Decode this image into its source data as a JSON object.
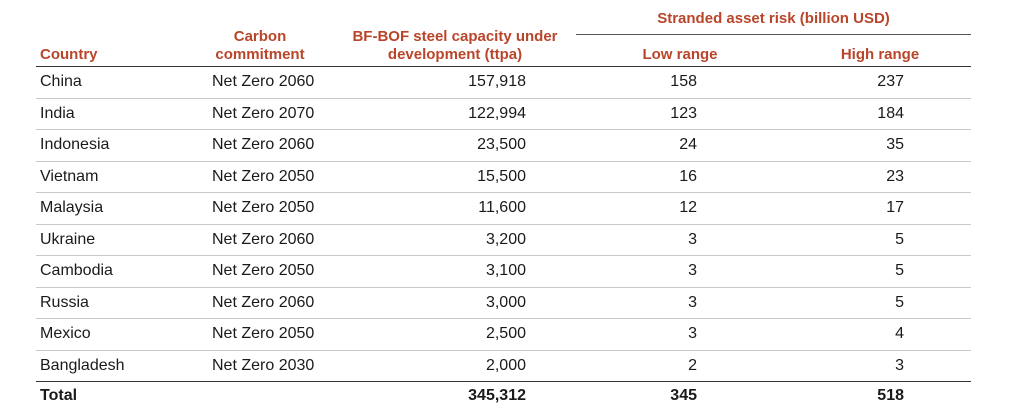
{
  "headers": {
    "country": "Country",
    "carbon_commitment": [
      "Carbon",
      "commitment"
    ],
    "capacity": [
      "BF-BOF steel capacity under",
      "development (ttpa)"
    ],
    "stranded_group": "Stranded asset risk (billion USD)",
    "low": "Low range",
    "high": "High range"
  },
  "rows": [
    {
      "country": "China",
      "commitment": "Net Zero 2060",
      "capacity": "157,918",
      "low": "158",
      "high": "237"
    },
    {
      "country": "India",
      "commitment": "Net Zero 2070",
      "capacity": "122,994",
      "low": "123",
      "high": "184"
    },
    {
      "country": "Indonesia",
      "commitment": "Net Zero 2060",
      "capacity": "23,500",
      "low": "24",
      "high": "35"
    },
    {
      "country": "Vietnam",
      "commitment": "Net Zero 2050",
      "capacity": "15,500",
      "low": "16",
      "high": "23"
    },
    {
      "country": "Malaysia",
      "commitment": "Net Zero 2050",
      "capacity": "11,600",
      "low": "12",
      "high": "17"
    },
    {
      "country": "Ukraine",
      "commitment": "Net Zero 2060",
      "capacity": "3,200",
      "low": "3",
      "high": "5"
    },
    {
      "country": "Cambodia",
      "commitment": "Net Zero 2050",
      "capacity": "3,100",
      "low": "3",
      "high": "5"
    },
    {
      "country": "Russia",
      "commitment": "Net Zero 2060",
      "capacity": "3,000",
      "low": "3",
      "high": "5"
    },
    {
      "country": "Mexico",
      "commitment": "Net Zero 2050",
      "capacity": "2,500",
      "low": "3",
      "high": "4"
    },
    {
      "country": "Bangladesh",
      "commitment": "Net Zero 2030",
      "capacity": "2,000",
      "low": "2",
      "high": "3"
    }
  ],
  "total": {
    "label": "Total",
    "capacity": "345,312",
    "low": "345",
    "high": "518"
  },
  "colors": {
    "header": "#b9452a",
    "text": "#1a1a1a"
  }
}
